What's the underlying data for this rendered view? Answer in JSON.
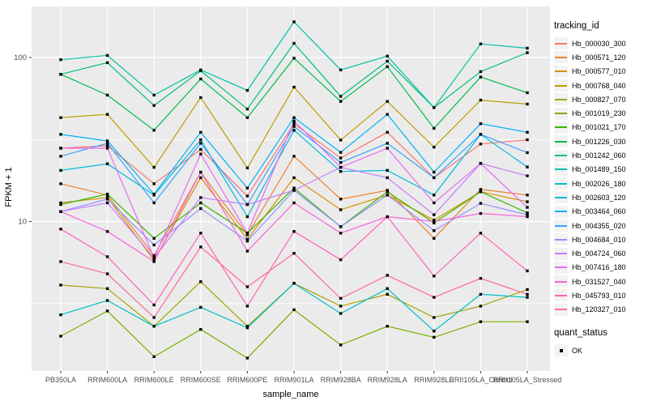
{
  "chart_data": {
    "type": "line",
    "title": "",
    "xlabel": "sample_name",
    "ylabel": "FPKM + 1",
    "y_scale": "log10",
    "y_ticks": [
      10,
      100
    ],
    "y_minor_ticks": [
      3.162,
      31.623
    ],
    "ylim": [
      1.28,
      200
    ],
    "grid": "on",
    "panel_bg": "#EBEBEB",
    "grid_color": "#FFFFFF",
    "tick_label_color": "#4D4D4D",
    "point_marker": {
      "shape": "square",
      "color": "#000000"
    },
    "legend_position": "right",
    "legend_series_title": "tracking_id",
    "legend_point_title": "quant_status",
    "legend_point_label": "OK",
    "categories": [
      "PB350LA",
      "RRIM600LA",
      "RRIM600LE",
      "RRIM600SE",
      "RRIM600PE",
      "RRIM901LA",
      "RRIM928BA",
      "RRIM928LA",
      "RRIM928LE",
      "RRII105LA_Control",
      "RRII105LA_Stressed"
    ],
    "series": [
      {
        "name": "Hb_000030_300",
        "color": "#F8766D",
        "values": [
          28,
          29,
          17,
          27.5,
          14.3,
          39.5,
          24.4,
          35,
          18.5,
          29.7,
          31.5
        ]
      },
      {
        "name": "Hb_000571_120",
        "color": "#EA8331",
        "values": [
          17,
          14.5,
          6.2,
          20,
          8.3,
          25,
          13.7,
          15.5,
          7.9,
          15.7,
          14.5
        ]
      },
      {
        "name": "Hb_000577_010",
        "color": "#D89000",
        "values": [
          13,
          14,
          5.8,
          18.5,
          7.8,
          18.5,
          11.8,
          14.5,
          10.2,
          15.2,
          13.2
        ]
      },
      {
        "name": "Hb_000768_040",
        "color": "#C09B00",
        "values": [
          43,
          45,
          21.4,
          57,
          21.2,
          66,
          31.4,
          54,
          28.4,
          55,
          52
        ]
      },
      {
        "name": "Hb_000827_070",
        "color": "#A3A500",
        "values": [
          4.1,
          3.9,
          2.3,
          4.3,
          2.3,
          4.2,
          3.05,
          3.6,
          2.6,
          3.05,
          3.85
        ]
      },
      {
        "name": "Hb_001019_230",
        "color": "#7CAE00",
        "values": [
          2.0,
          2.85,
          1.5,
          2.2,
          1.47,
          2.9,
          1.77,
          2.3,
          1.97,
          2.45,
          2.45
        ]
      },
      {
        "name": "Hb_001021_170",
        "color": "#39B600",
        "values": [
          12.7,
          14.7,
          7.9,
          13,
          8.5,
          16,
          9.3,
          15.2,
          9.8,
          15.2,
          11.3
        ]
      },
      {
        "name": "Hb_001226_030",
        "color": "#00BB4E",
        "values": [
          79,
          59,
          36,
          74,
          43,
          99,
          54,
          88,
          37,
          76,
          61
        ]
      },
      {
        "name": "Hb_001242_060",
        "color": "#00BF7D",
        "values": [
          79,
          93,
          51,
          83,
          48.5,
          122,
          58,
          95,
          49.5,
          82,
          107
        ]
      },
      {
        "name": "Hb_001489_150",
        "color": "#00C1A3",
        "values": [
          97,
          103,
          59,
          84,
          63,
          165,
          84,
          102,
          49.5,
          121,
          114
        ]
      },
      {
        "name": "Hb_002026_180",
        "color": "#00BFC4",
        "values": [
          2.7,
          3.3,
          2.3,
          3.0,
          2.25,
          4.2,
          2.75,
          3.9,
          2.15,
          3.6,
          3.45
        ]
      },
      {
        "name": "Hb_002603_120",
        "color": "#00BAE0",
        "values": [
          20.5,
          22.5,
          14.5,
          31.5,
          10.7,
          36,
          20.2,
          20.5,
          14.5,
          34,
          21.5
        ]
      },
      {
        "name": "Hb_003464_060",
        "color": "#00B0F6",
        "values": [
          34,
          31,
          14.7,
          35,
          16,
          43,
          26.4,
          45,
          20,
          39.5,
          35
        ]
      },
      {
        "name": "Hb_004355_020",
        "color": "#35A2FF",
        "values": [
          25,
          30,
          13,
          30,
          12.7,
          38,
          22.9,
          30,
          18.5,
          34,
          26.3
        ]
      },
      {
        "name": "Hb_004684_010",
        "color": "#9590FF",
        "values": [
          11.5,
          13.7,
          7.2,
          12,
          7.6,
          15.5,
          9.3,
          14.5,
          8.8,
          12.9,
          11
        ]
      },
      {
        "name": "Hb_004724_060",
        "color": "#C77CFF",
        "values": [
          11.5,
          13,
          6.0,
          14,
          12.7,
          15.5,
          21.4,
          18.5,
          11,
          22.6,
          19
        ]
      },
      {
        "name": "Hb_007416_180",
        "color": "#E76BF3",
        "values": [
          28,
          28,
          6.0,
          25.8,
          8.5,
          41,
          21.4,
          28,
          13,
          22.6,
          12.2
        ]
      },
      {
        "name": "Hb_031527_040",
        "color": "#FA62DB",
        "values": [
          11.5,
          8.7,
          5.7,
          20,
          6.6,
          13,
          8.5,
          10.7,
          10,
          11.2,
          10.7
        ]
      },
      {
        "name": "Hb_045793_010",
        "color": "#FF62BC",
        "values": [
          9,
          6.1,
          3.1,
          8.5,
          3.05,
          8.7,
          5.85,
          10.7,
          4.65,
          8.5,
          5.0
        ]
      },
      {
        "name": "Hb_120327_010",
        "color": "#FF6A98",
        "values": [
          5.7,
          4.8,
          2.6,
          7.0,
          4.0,
          6.4,
          3.4,
          4.7,
          3.45,
          4.5,
          3.6
        ]
      }
    ]
  }
}
